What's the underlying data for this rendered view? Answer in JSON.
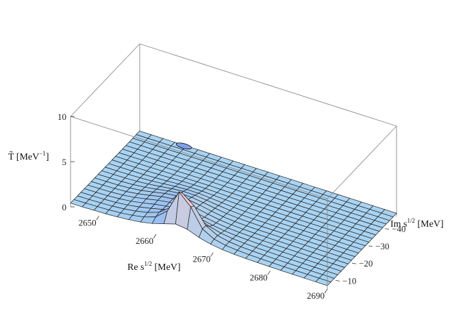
{
  "chart_data": {
    "type": "surface3d",
    "title": "",
    "zlabel": {
      "main": "T̃",
      "unit_pre": "[MeV",
      "unit_exp": "−1",
      "unit_post": "]"
    },
    "xlabel": {
      "pre": "Re s",
      "exp": "1/2",
      "post": " [MeV]"
    },
    "ylabel": {
      "pre": "Im s",
      "exp": "1/2",
      "post": " [MeV]"
    },
    "xlim": [
      2645,
      2690
    ],
    "ylim": [
      -47,
      -5
    ],
    "zlim": [
      0,
      10
    ],
    "x_ticks": [
      "2650",
      "2660",
      "2670",
      "2680",
      "2690"
    ],
    "x_tick_values": [
      2650,
      2660,
      2670,
      2680,
      2690
    ],
    "y_ticks": [
      "−10",
      "−20",
      "−30",
      "−40"
    ],
    "y_tick_values": [
      -10,
      -20,
      -30,
      -40
    ],
    "z_ticks": [
      "0",
      "5",
      "10"
    ],
    "z_tick_values": [
      0,
      5,
      10
    ],
    "pole": {
      "re": 2664,
      "im": -8
    },
    "peak_clipped_at": 10,
    "colors": {
      "surface_base": "#a9d3f2",
      "pole_blue": "#5a6fe8",
      "pole_magenta": "#c77cc7",
      "pole_peach": "#f5c6b6",
      "mesh": "#1a1a1a",
      "box": "#8a8a8a"
    }
  }
}
